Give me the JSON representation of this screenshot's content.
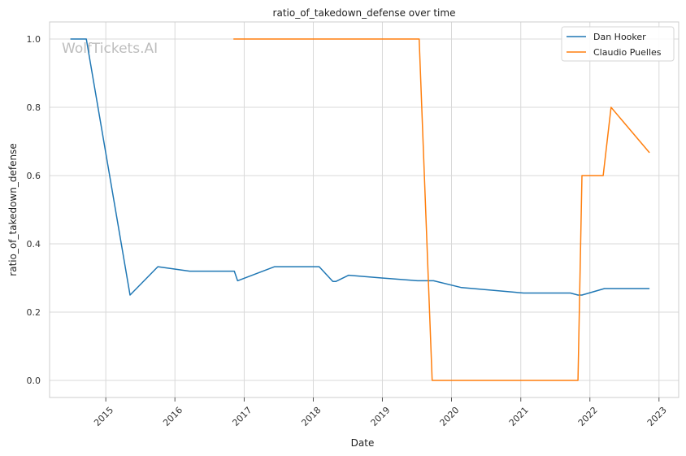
{
  "chart_data": {
    "type": "line",
    "title": "ratio_of_takedown_defense over time",
    "xlabel": "Date",
    "ylabel": "ratio_of_takedown_defense",
    "watermark": "WolfTickets.AI",
    "x_ticks": [
      "2015",
      "2016",
      "2017",
      "2018",
      "2019",
      "2020",
      "2021",
      "2022",
      "2023"
    ],
    "y_ticks": [
      "0.0",
      "0.2",
      "0.4",
      "0.6",
      "0.8",
      "1.0"
    ],
    "xlim": [
      "2014-03-10",
      "2023-04-15"
    ],
    "ylim": [
      -0.05,
      1.05
    ],
    "grid": true,
    "legend_position": "top-right",
    "series": [
      {
        "name": "Dan Hooker",
        "color": "#1f77b4",
        "points": [
          [
            "2014-06-28",
            1.0
          ],
          [
            "2014-09-20",
            1.0
          ],
          [
            "2015-05-09",
            0.25
          ],
          [
            "2015-10-03",
            0.333
          ],
          [
            "2016-03-19",
            0.32
          ],
          [
            "2016-11-10",
            0.32
          ],
          [
            "2016-11-27",
            0.292
          ],
          [
            "2017-06-11",
            0.333
          ],
          [
            "2018-02-01",
            0.333
          ],
          [
            "2018-04-14",
            0.29
          ],
          [
            "2018-05-01",
            0.29
          ],
          [
            "2018-07-07",
            0.308
          ],
          [
            "2018-12-29",
            0.3
          ],
          [
            "2019-07-06",
            0.292
          ],
          [
            "2019-09-28",
            0.292
          ],
          [
            "2020-02-23",
            0.272
          ],
          [
            "2021-01-16",
            0.256
          ],
          [
            "2021-09-20",
            0.256
          ],
          [
            "2021-10-30",
            0.25
          ],
          [
            "2021-11-20",
            0.25
          ],
          [
            "2022-03-19",
            0.269
          ],
          [
            "2022-11-12",
            0.269
          ]
        ]
      },
      {
        "name": "Claudio Puelles",
        "color": "#ff7f0e",
        "points": [
          [
            "2016-11-05",
            1.0
          ],
          [
            "2019-07-14",
            1.0
          ],
          [
            "2019-09-21",
            0.0
          ],
          [
            "2021-10-30",
            0.0
          ],
          [
            "2021-11-20",
            0.6
          ],
          [
            "2022-03-12",
            0.6
          ],
          [
            "2022-04-23",
            0.8
          ],
          [
            "2022-11-12",
            0.667
          ]
        ]
      }
    ]
  }
}
